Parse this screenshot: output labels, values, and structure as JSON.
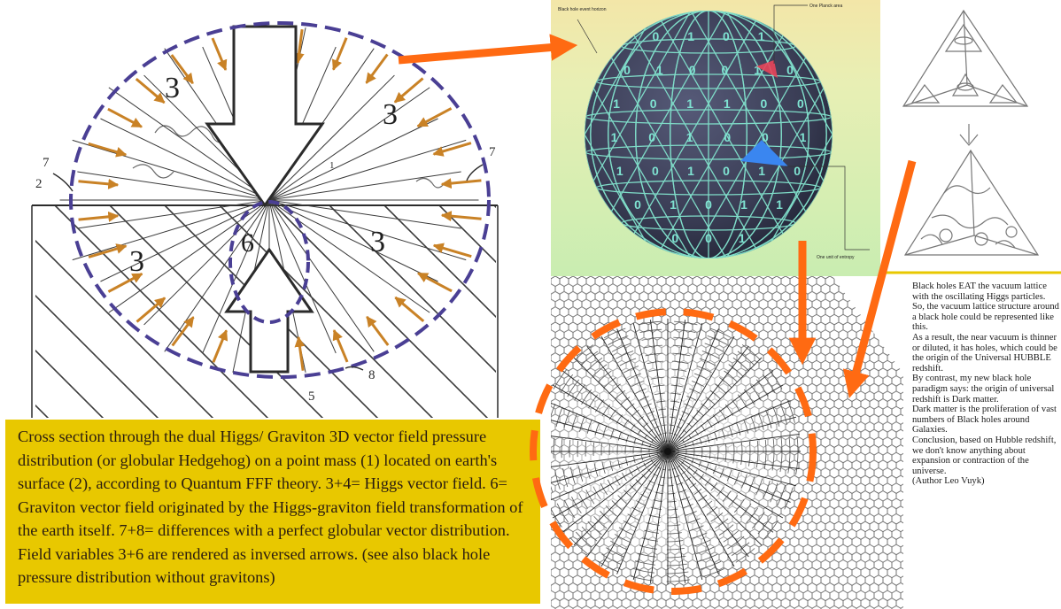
{
  "diagram": {
    "labels": {
      "higgs_field": "3",
      "graviton_field": "6",
      "deviation_a": "7",
      "deviation_b": "8",
      "point_mass": "1",
      "earth_surface": "2",
      "other_mark": "5"
    }
  },
  "caption": {
    "text": "Cross section through the dual Higgs/ Graviton 3D vector field pressure distribution (or globular Hedgehog) on a point mass (1) located on earth's surface (2), according to Quantum FFF theory. 3+4= Higgs vector field. 6= Graviton vector field originated by the Higgs-graviton field transformation of the earth itself. 7+8= differences with a perfect globular vector distribution. Field variables 3+6 are rendered as inversed arrows. (see also black hole pressure distribution without gravitons)"
  },
  "sphere": {
    "label_top_left": "Black hole event horizon",
    "label_top_right": "One Planck area",
    "label_bottom_right": "One unit of entropy",
    "bits": [
      "0",
      "1",
      "0",
      "1",
      "0",
      "1",
      "0",
      "0",
      "1",
      "0",
      "1",
      "0",
      "1",
      "1",
      "0",
      "0",
      "1",
      "0",
      "1",
      "0",
      "0",
      "1",
      "1",
      "0",
      "1",
      "0",
      "1",
      "0",
      "0",
      "1",
      "0",
      "1",
      "1",
      "0",
      "0",
      "1",
      "0",
      "1",
      "0",
      "1",
      "1",
      "0",
      "1",
      "0",
      "0",
      "1",
      "0",
      "1"
    ]
  },
  "right_text": {
    "paragraphs": [
      "Black holes EAT the vacuum lattice with the oscillating Higgs particles.",
      "So, the vacuum lattice structure around a black hole could be represented like this.",
      "As a result, the near vacuum is thinner or diluted, it has holes, which could be the origin of the Universal HUBBLE redshift.",
      "By contrast, my new black hole paradigm says: the origin of universal redshift is Dark matter.",
      "Dark matter is the proliferation of vast numbers of Black holes around Galaxies.",
      "Conclusion, based on Hubble redshift, we don't know anything about expansion or contraction of the universe.",
      "(Author Leo Vuyk)"
    ]
  },
  "colors": {
    "caption_background": "#e8c800",
    "annotation_arrow": "#ff6a12",
    "dashed_outline": "#4a3f94",
    "field_arrow": "#c98226",
    "sphere_fill": "#3a3d55",
    "highlight_red": "#e8455a",
    "highlight_blue": "#3a86f0"
  }
}
